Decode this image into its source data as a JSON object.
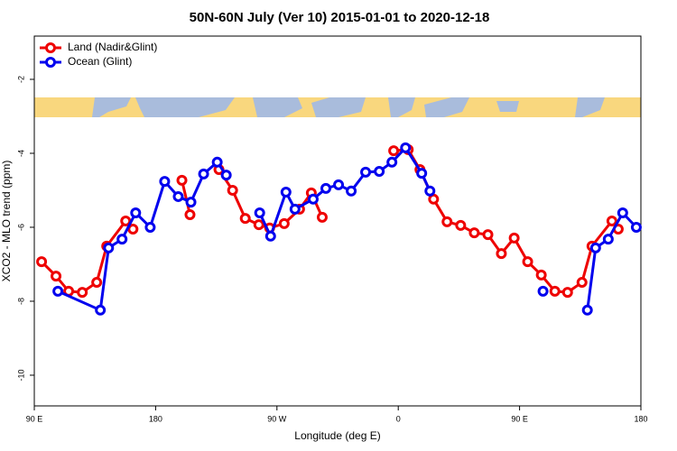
{
  "chart_data": {
    "type": "line",
    "title": "50N-60N July (Ver 10)   2015-01-01 to 2020-12-18",
    "x_label": "Longitude (deg E)",
    "y_label": "XCO2 - MLO trend (ppm)",
    "xlim": [
      90,
      540
    ],
    "ylim": [
      -10.83,
      -0.83
    ],
    "xticks": [
      {
        "value": 90,
        "label": "90 E"
      },
      {
        "value": 180,
        "label": "180"
      },
      {
        "value": 270,
        "label": "90 W"
      },
      {
        "value": 360,
        "label": "0"
      },
      {
        "value": 450,
        "label": "90 E"
      },
      {
        "value": 540,
        "label": "180"
      }
    ],
    "yticks": [
      -2,
      -4,
      -6,
      -8,
      -10
    ],
    "legend": "top-left",
    "series": [
      {
        "name": "Land (Nadir&Glint)",
        "color": "#ee0000",
        "x": [
          95.4,
          106.1,
          115.5,
          125.6,
          136.3,
          143.7,
          157.8,
          163.2,
          null,
          199.5,
          205.5,
          null,
          227.0,
          237.1,
          246.5,
          256.6,
          264.6,
          275.4,
          286.8,
          295.5,
          303.6,
          null,
          356.6,
          367.4,
          376.1,
          386.2,
          396.2,
          406.3,
          416.4,
          426.5,
          436.5,
          446.0,
          456.0,
          466.1,
          476.2,
          485.6,
          496.3,
          503.7,
          518.5,
          523.2
        ],
        "values": [
          -6.93,
          -7.32,
          -7.73,
          -7.76,
          -7.49,
          -6.51,
          -5.83,
          -6.05,
          null,
          -4.73,
          -5.66,
          null,
          -4.44,
          -5.0,
          -5.76,
          -5.93,
          -6.02,
          -5.9,
          -5.51,
          -5.07,
          -5.73,
          null,
          -3.93,
          -3.9,
          -4.44,
          -5.24,
          -5.85,
          -5.95,
          -6.15,
          -6.2,
          -6.71,
          -6.29,
          -6.93,
          -7.29,
          -7.73,
          -7.76,
          -7.49,
          -6.51,
          -5.83,
          -6.05
        ]
      },
      {
        "name": "Ocean (Glint)",
        "color": "#0000ee",
        "x": [
          107.5,
          139.0,
          145.1,
          155.1,
          165.2,
          176.0,
          186.7,
          196.8,
          206.2,
          215.6,
          225.7,
          232.4,
          null,
          257.2,
          265.3,
          276.7,
          283.4,
          296.9,
          306.3,
          315.7,
          325.1,
          335.8,
          345.9,
          355.3,
          365.4,
          377.4,
          383.5,
          null,
          467.4,
          null,
          500.3,
          506.4,
          515.8,
          526.5,
          536.6
        ],
        "values": [
          -7.73,
          -8.24,
          -6.56,
          -6.32,
          -5.61,
          -6.0,
          -4.76,
          -5.17,
          -5.32,
          -4.56,
          -4.24,
          -4.59,
          null,
          -5.61,
          -6.24,
          -5.05,
          -5.51,
          -5.24,
          -4.95,
          -4.85,
          -5.02,
          -4.51,
          -4.49,
          -4.24,
          -3.85,
          -4.54,
          -5.02,
          null,
          -7.73,
          null,
          -8.24,
          -6.56,
          -6.32,
          -5.61,
          -6.0
        ]
      }
    ]
  }
}
